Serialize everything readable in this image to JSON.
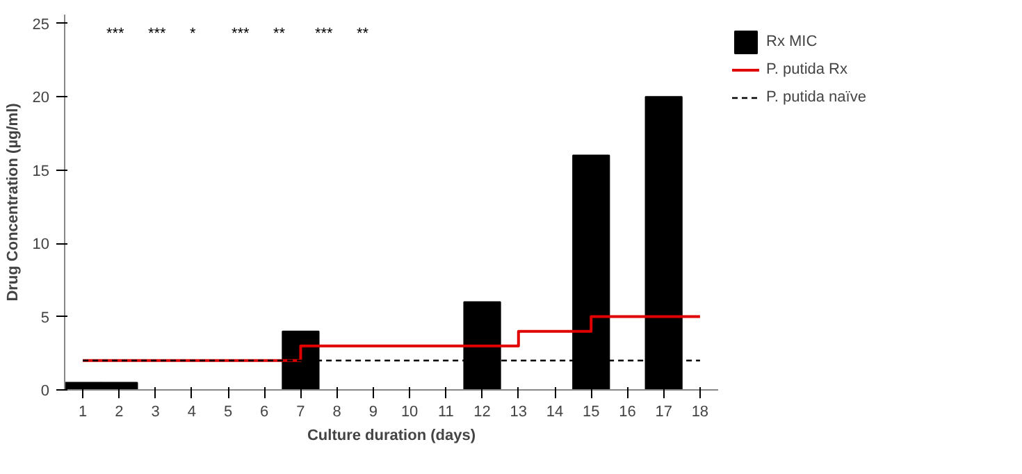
{
  "chart_data": {
    "type": "bar",
    "xlabel": "Culture duration (days)",
    "ylabel": "Drug Concentration (µg/ml)",
    "x": [
      1,
      2,
      3,
      4,
      5,
      6,
      7,
      8,
      9,
      10,
      11,
      12,
      13,
      14,
      15,
      16,
      17
    ],
    "xlim": [
      0.5,
      18.5
    ],
    "xticks": [
      1,
      2,
      3,
      4,
      5,
      6,
      7,
      8,
      9,
      10,
      11,
      12,
      13,
      14,
      15,
      16,
      17,
      18
    ],
    "ylim": [
      0,
      25.6
    ],
    "yticks": [
      0,
      5,
      10,
      15,
      20,
      25
    ],
    "series": [
      {
        "name": "Rx MIC",
        "color": "#000000",
        "values": [
          0.5,
          0.5,
          null,
          null,
          null,
          null,
          4,
          null,
          null,
          null,
          null,
          6,
          null,
          null,
          16,
          null,
          20
        ]
      },
      {
        "name": "P. putida Rx",
        "type": "step",
        "color": "#e00000",
        "x": [
          1,
          7,
          13,
          15,
          18
        ],
        "values": [
          2,
          3,
          4,
          5,
          5
        ],
        "line_style": "solid"
      },
      {
        "name": "P. putida naïve",
        "type": "step",
        "color": "#000000",
        "x": [
          1,
          18
        ],
        "values": [
          2,
          2
        ],
        "line_style": "dashed"
      }
    ],
    "annotations": [
      "***",
      "***",
      "*",
      "***",
      "**",
      "***",
      "**"
    ],
    "grid": false,
    "legend": "top right"
  }
}
